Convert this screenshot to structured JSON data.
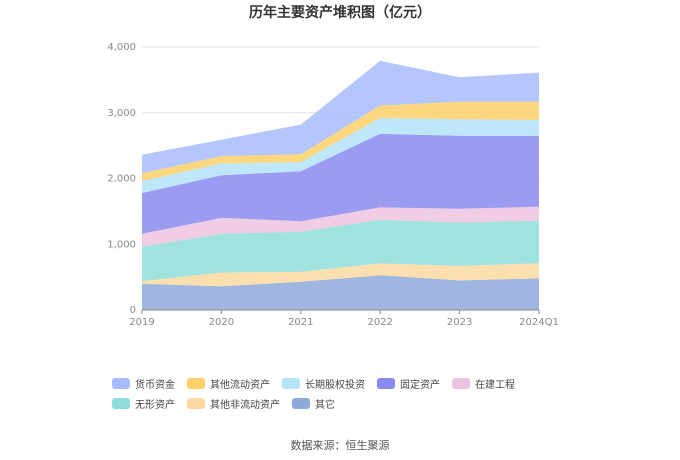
{
  "source": "数据来源：恒生聚源",
  "chart_data": {
    "type": "area",
    "stacked": true,
    "title": "历年主要资产堆积图（亿元）",
    "categories": [
      "2019",
      "2020",
      "2021",
      "2022",
      "2023",
      "2024Q1"
    ],
    "ylim": [
      0,
      4000
    ],
    "yticks": [
      0,
      1000,
      2000,
      3000,
      4000
    ],
    "ytick_labels": [
      "0",
      "1,000",
      "2,000",
      "3,000",
      "4,000"
    ],
    "grid": true,
    "legend_position": "bottom",
    "series": [
      {
        "name": "其它",
        "color": "#8eaadb",
        "values": [
          400,
          360,
          430,
          530,
          450,
          480
        ]
      },
      {
        "name": "其他非流动资产",
        "color": "#fcd9a0",
        "values": [
          40,
          210,
          150,
          180,
          220,
          230
        ]
      },
      {
        "name": "无形资产",
        "color": "#8fddd8",
        "values": [
          520,
          590,
          610,
          660,
          660,
          650
        ]
      },
      {
        "name": "在建工程",
        "color": "#edc3e0",
        "values": [
          200,
          240,
          160,
          190,
          210,
          210
        ]
      },
      {
        "name": "固定资产",
        "color": "#8a8af0",
        "values": [
          620,
          650,
          760,
          1120,
          1110,
          1080
        ]
      },
      {
        "name": "长期股权投资",
        "color": "#b3e4f8",
        "values": [
          180,
          180,
          140,
          240,
          250,
          240
        ]
      },
      {
        "name": "其他流动资产",
        "color": "#fdd06a",
        "values": [
          120,
          110,
          120,
          190,
          270,
          280
        ]
      },
      {
        "name": "货币资金",
        "color": "#a7bcfa",
        "values": [
          280,
          250,
          450,
          680,
          370,
          440
        ]
      }
    ],
    "legend_order": [
      "货币资金",
      "其他流动资产",
      "长期股权投资",
      "固定资产",
      "在建工程",
      "无形资产",
      "其他非流动资产",
      "其它"
    ]
  }
}
